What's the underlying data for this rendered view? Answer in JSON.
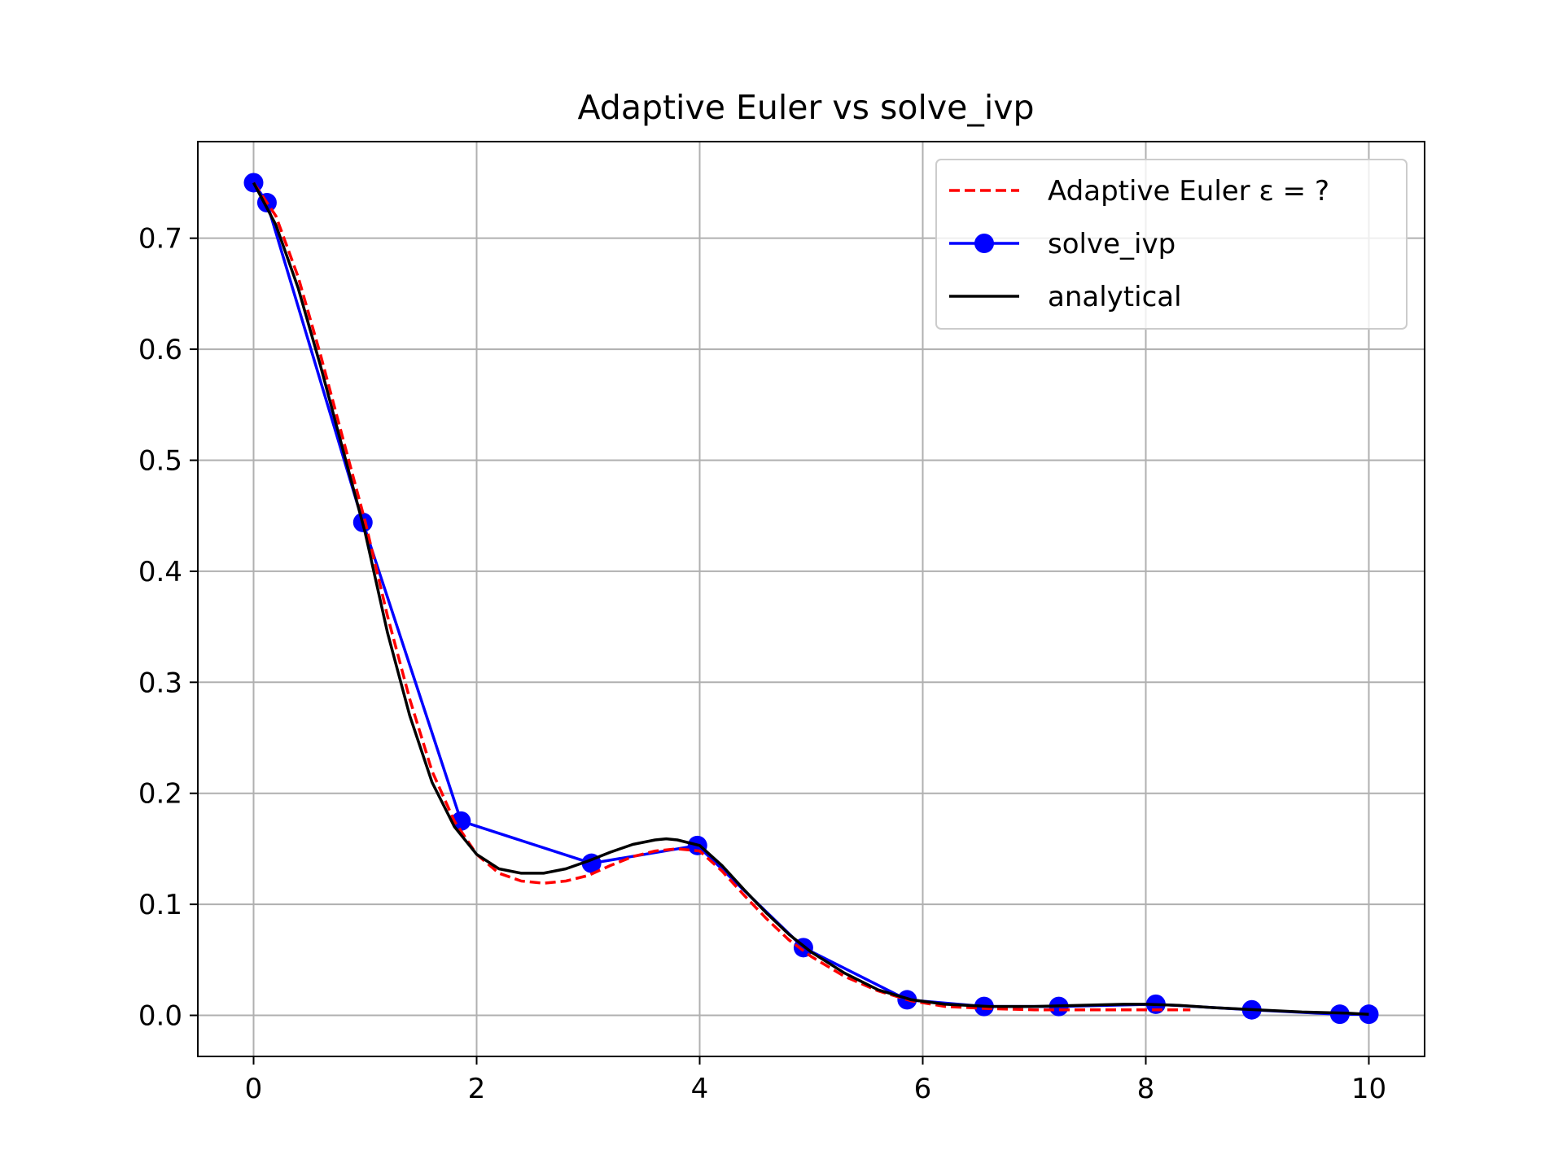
{
  "chart_data": {
    "type": "line",
    "title": "Adaptive Euler vs solve_ivp",
    "xlabel": "",
    "ylabel": "",
    "xlim": [
      -0.5,
      10.5
    ],
    "ylim": [
      -0.037,
      0.787
    ],
    "xticks": [
      0,
      2,
      4,
      6,
      8,
      10
    ],
    "xtick_labels": [
      "0",
      "2",
      "4",
      "6",
      "8",
      "10"
    ],
    "yticks": [
      0.0,
      0.1,
      0.2,
      0.3,
      0.4,
      0.5,
      0.6,
      0.7
    ],
    "ytick_labels": [
      "0.0",
      "0.1",
      "0.2",
      "0.3",
      "0.4",
      "0.5",
      "0.6",
      "0.7"
    ],
    "grid": true,
    "legend_placement": "top-right",
    "series": [
      {
        "name": "Adaptive Euler ε = ?",
        "color": "#ff0000",
        "style": "dashed",
        "x": [
          0.0,
          0.2,
          0.4,
          0.6,
          0.8,
          1.0,
          1.2,
          1.4,
          1.6,
          1.8,
          2.0,
          2.2,
          2.4,
          2.6,
          2.8,
          3.0,
          3.2,
          3.4,
          3.6,
          3.8,
          4.0,
          4.2,
          4.4,
          4.6,
          4.8,
          5.0,
          5.3,
          5.6,
          5.9,
          6.2,
          6.6,
          7.0,
          7.4,
          7.8,
          8.2,
          8.4
        ],
        "y": [
          0.75,
          0.72,
          0.665,
          0.595,
          0.52,
          0.445,
          0.36,
          0.285,
          0.22,
          0.175,
          0.145,
          0.128,
          0.121,
          0.119,
          0.121,
          0.126,
          0.135,
          0.143,
          0.148,
          0.15,
          0.148,
          0.13,
          0.108,
          0.087,
          0.068,
          0.053,
          0.035,
          0.022,
          0.013,
          0.008,
          0.006,
          0.005,
          0.005,
          0.005,
          0.005,
          0.005
        ]
      },
      {
        "name": "solve_ivp",
        "color": "#0000ff",
        "style": "solid-markers",
        "x": [
          0.0,
          0.12,
          0.98,
          1.86,
          3.03,
          3.98,
          4.93,
          5.86,
          6.55,
          7.22,
          8.09,
          8.95,
          9.74,
          10.0
        ],
        "y": [
          0.75,
          0.732,
          0.444,
          0.175,
          0.137,
          0.153,
          0.061,
          0.014,
          0.008,
          0.008,
          0.01,
          0.005,
          0.001,
          0.001
        ]
      },
      {
        "name": "analytical",
        "color": "#000000",
        "style": "solid",
        "x": [
          0.0,
          0.2,
          0.4,
          0.6,
          0.8,
          1.0,
          1.2,
          1.4,
          1.6,
          1.8,
          2.0,
          2.2,
          2.4,
          2.6,
          2.8,
          3.0,
          3.2,
          3.4,
          3.6,
          3.7,
          3.8,
          4.0,
          4.2,
          4.4,
          4.6,
          4.8,
          5.0,
          5.3,
          5.6,
          5.9,
          6.2,
          6.6,
          7.0,
          7.4,
          7.8,
          8.0,
          8.3,
          8.6,
          9.0,
          9.4,
          9.8,
          10.0
        ],
        "y": [
          0.75,
          0.712,
          0.655,
          0.585,
          0.51,
          0.435,
          0.345,
          0.27,
          0.21,
          0.17,
          0.145,
          0.132,
          0.128,
          0.128,
          0.132,
          0.139,
          0.147,
          0.154,
          0.158,
          0.159,
          0.158,
          0.153,
          0.135,
          0.113,
          0.092,
          0.073,
          0.057,
          0.038,
          0.023,
          0.014,
          0.01,
          0.008,
          0.008,
          0.009,
          0.01,
          0.01,
          0.009,
          0.007,
          0.005,
          0.003,
          0.002,
          0.001
        ]
      }
    ]
  }
}
